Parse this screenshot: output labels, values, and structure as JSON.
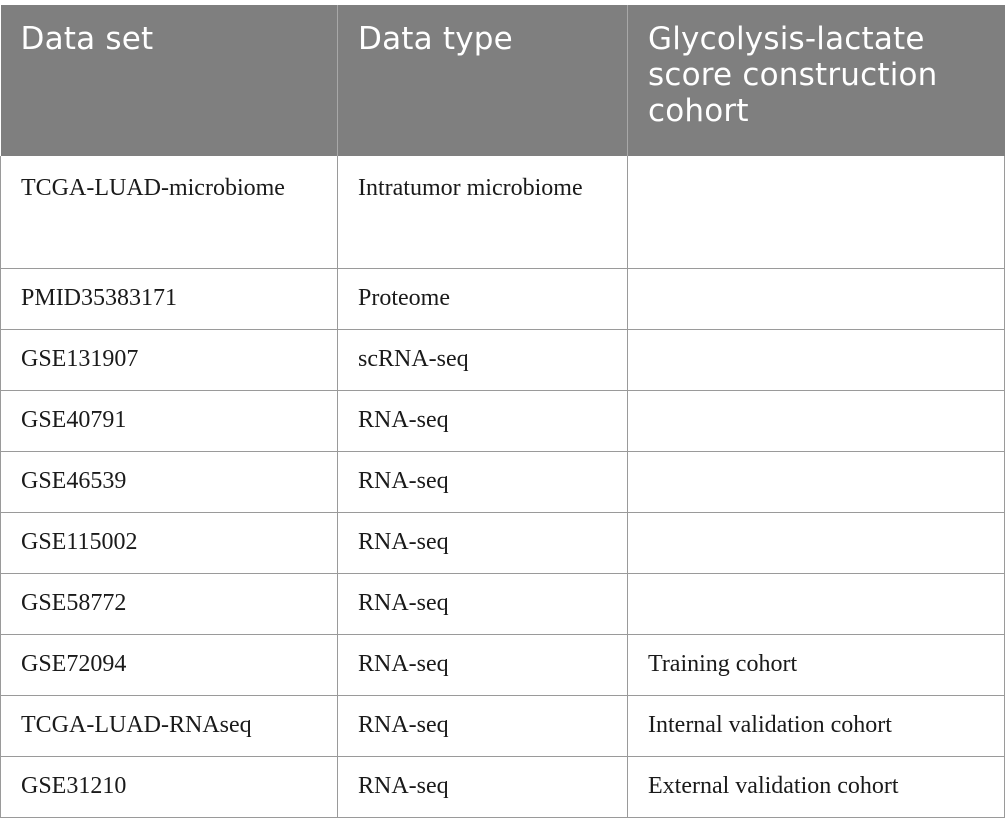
{
  "table": {
    "headers": [
      "Data set",
      "Data type",
      "Glycolysis-lactate score construction cohort"
    ],
    "rows": [
      {
        "data_set": "TCGA-LUAD-microbiome",
        "data_type": "Intratumor microbiome",
        "cohort": ""
      },
      {
        "data_set": "PMID35383171",
        "data_type": "Proteome",
        "cohort": ""
      },
      {
        "data_set": "GSE131907",
        "data_type": "scRNA-seq",
        "cohort": ""
      },
      {
        "data_set": "GSE40791",
        "data_type": "RNA-seq",
        "cohort": ""
      },
      {
        "data_set": "GSE46539",
        "data_type": "RNA-seq",
        "cohort": ""
      },
      {
        "data_set": "GSE115002",
        "data_type": "RNA-seq",
        "cohort": ""
      },
      {
        "data_set": "GSE58772",
        "data_type": "RNA-seq",
        "cohort": ""
      },
      {
        "data_set": "GSE72094",
        "data_type": "RNA-seq",
        "cohort": "Training cohort"
      },
      {
        "data_set": "TCGA-LUAD-RNAseq",
        "data_type": "RNA-seq",
        "cohort": "Internal validation cohort"
      },
      {
        "data_set": "GSE31210",
        "data_type": "RNA-seq",
        "cohort": "External validation cohort"
      }
    ]
  },
  "colors": {
    "header_bg": "#7f7f7f",
    "header_text": "#ffffff",
    "grid_line": "#9a9a9a",
    "body_text": "#1a1a1a"
  }
}
